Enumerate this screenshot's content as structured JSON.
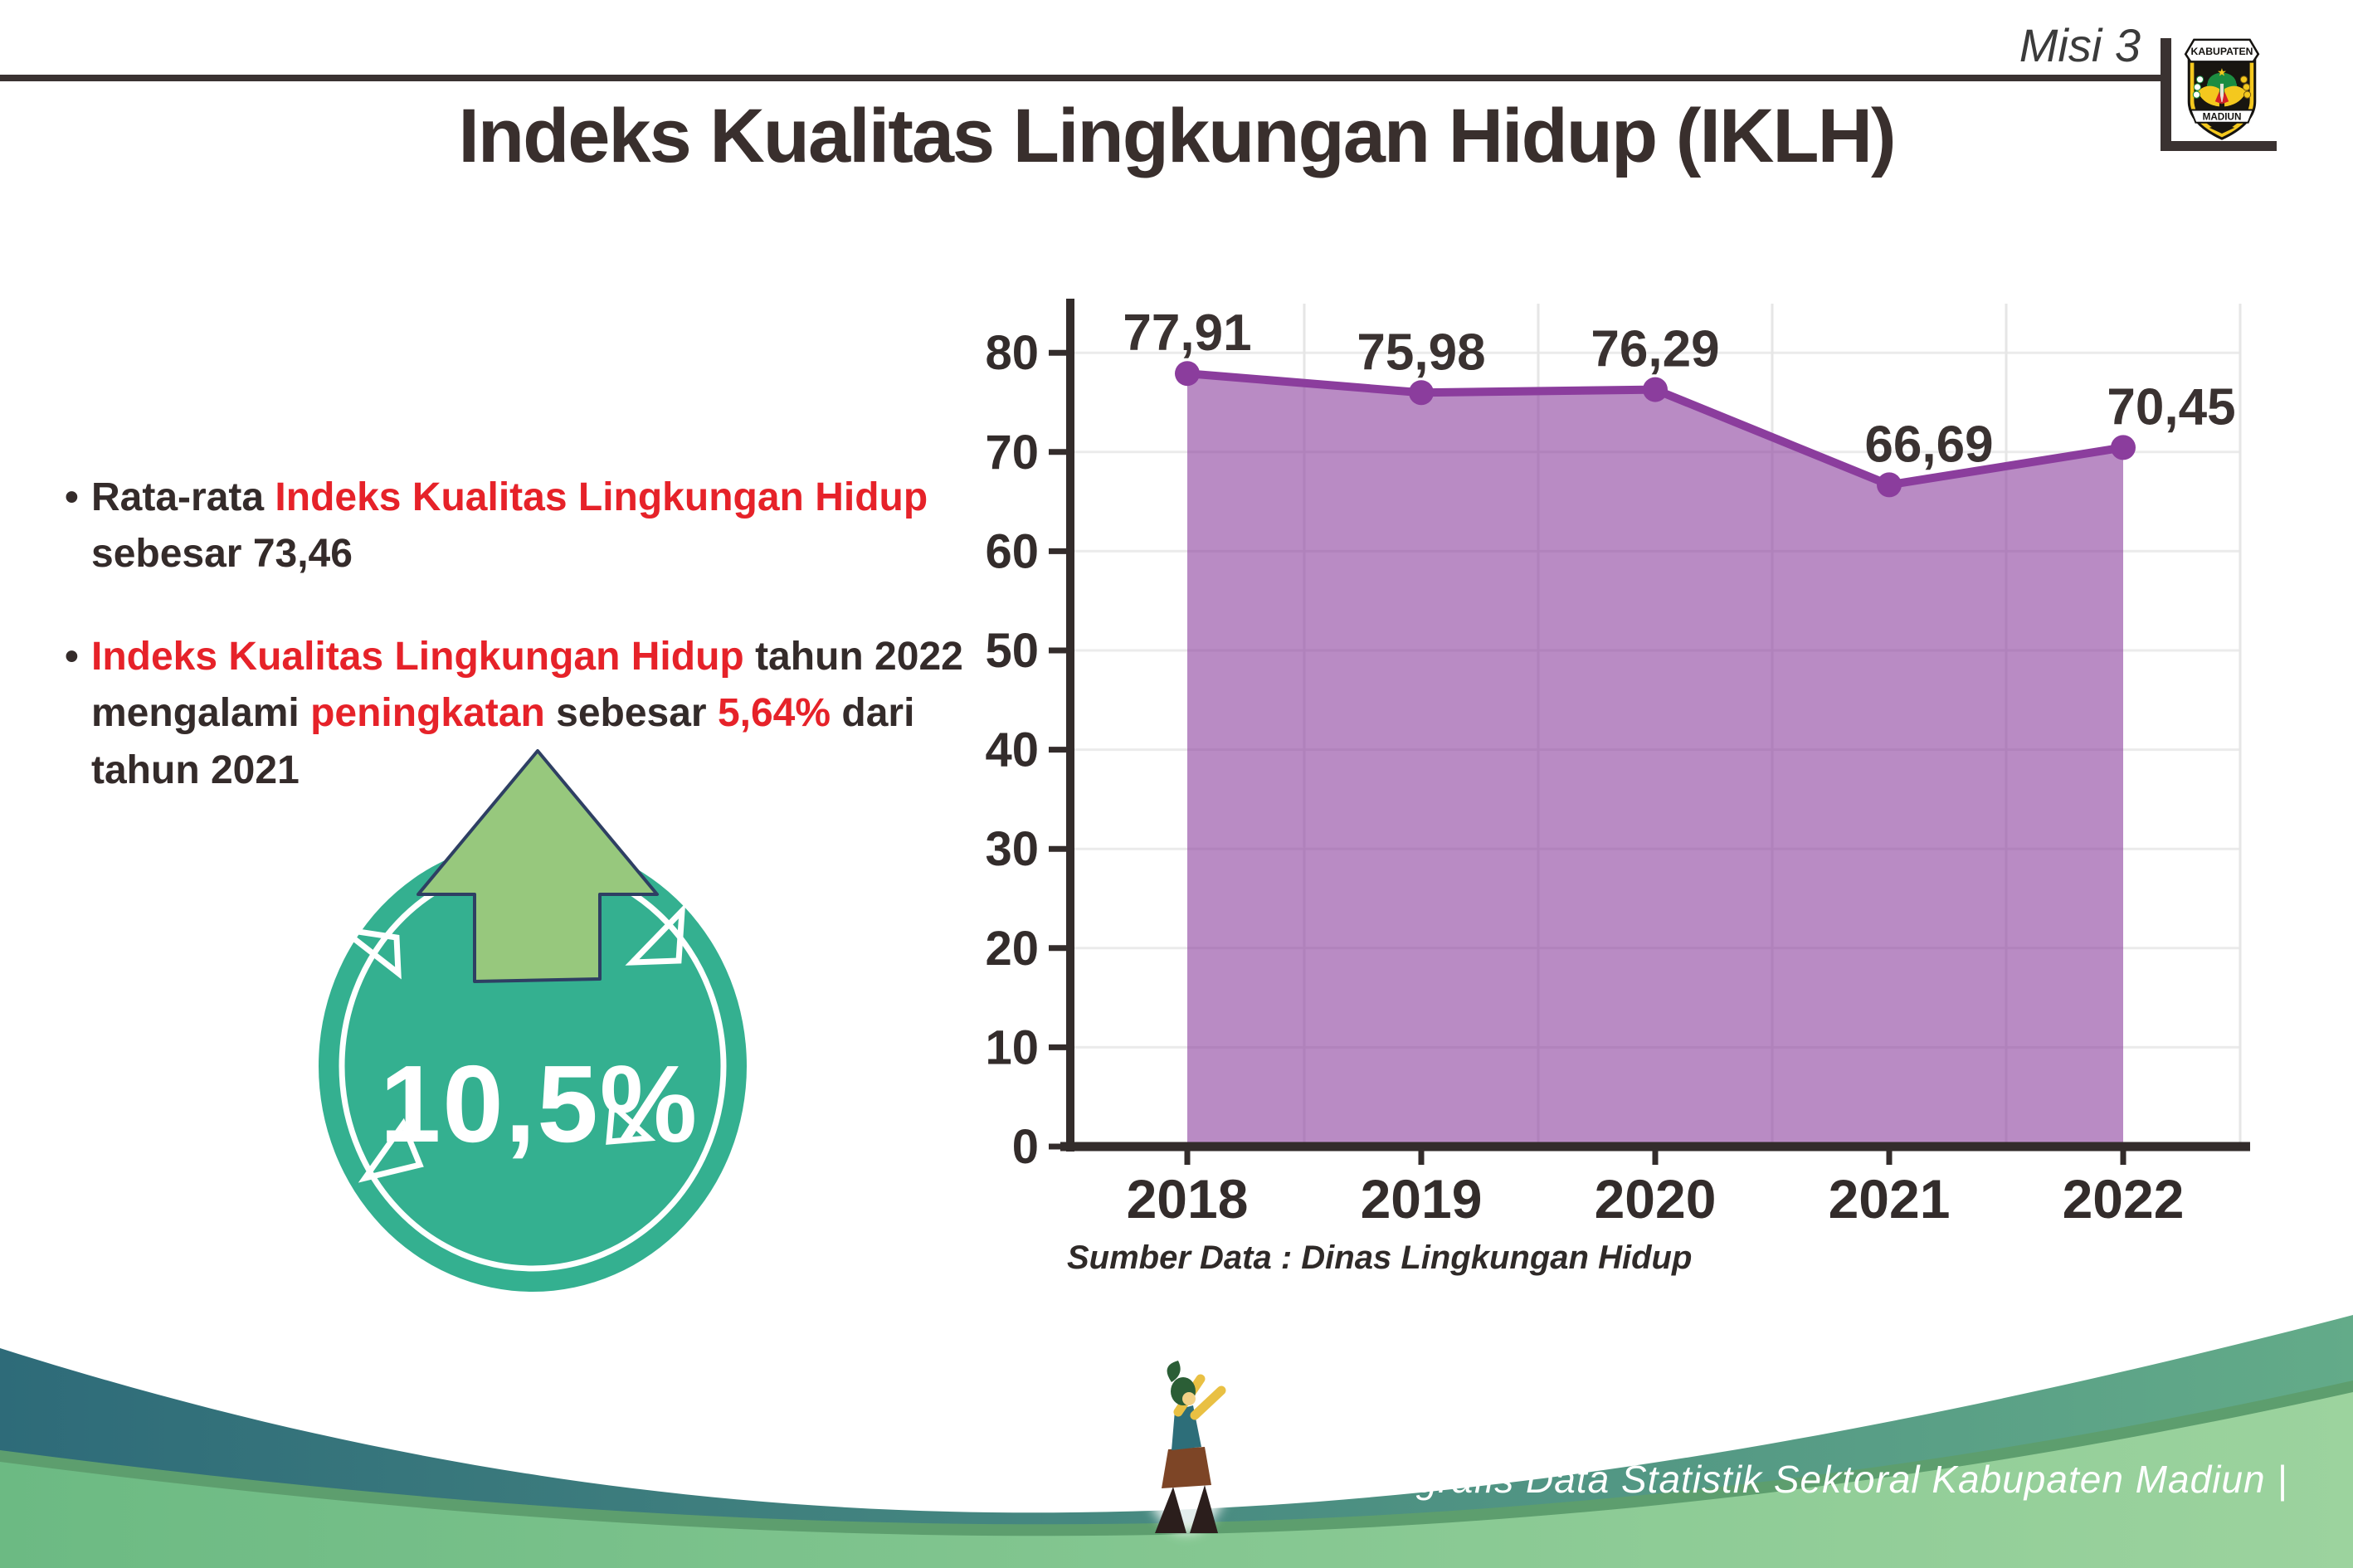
{
  "header": {
    "misi": "Misi 3",
    "title": "Indeks Kualitas Lingkungan Hidup (IKLH)"
  },
  "logo": {
    "top": "KABUPATEN",
    "bottom": "MADIUN"
  },
  "bullets": {
    "dot": "•",
    "b1": {
      "seg1": "Rata-rata ",
      "seg2": "Indeks Kualitas Lingkungan Hidup",
      "seg3": " sebesar 73,46"
    },
    "b2": {
      "seg1": "Indeks Kualitas Lingkungan Hidup",
      "seg2": " tahun 2022 mengalami ",
      "seg3": "peningkatan",
      "seg4": " sebesar ",
      "seg5": "5,64%",
      "seg6": " dari tahun 2021"
    }
  },
  "badge": {
    "value": "10,5%",
    "circle_color": "#34b090",
    "arrow_color": "#97c87d"
  },
  "chart_data": {
    "type": "area",
    "categories": [
      "2018",
      "2019",
      "2020",
      "2021",
      "2022"
    ],
    "values": [
      77.91,
      75.98,
      76.29,
      66.69,
      70.45
    ],
    "point_labels": [
      "77,91",
      "75,98",
      "76,29",
      "66,69",
      "70,45"
    ],
    "y_ticks": [
      0,
      10,
      20,
      30,
      40,
      50,
      60,
      70,
      80
    ],
    "ylim": [
      0,
      85
    ],
    "grid": true,
    "legend": "none",
    "line_color": "#8b3d9d",
    "fill_color": "#8e44a0",
    "axis_color": "#332c2b",
    "label_color": "#3a3231",
    "source": "Sumber Data : Dinas Lingkungan Hidup"
  },
  "footer": {
    "credit": "Media Infografis Data Statistik Sektoral Kabupaten Madiun |",
    "wave_teal_left": "#2e6b79",
    "wave_teal_right": "#63ab89",
    "wave_green_left": "#6cba83",
    "wave_green_right": "#9cd39e"
  }
}
